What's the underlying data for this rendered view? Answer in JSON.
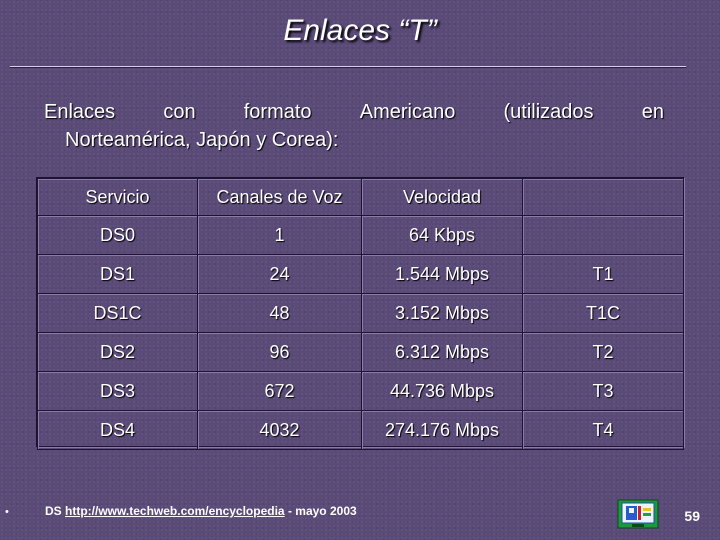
{
  "slide": {
    "title": "Enlaces “T”",
    "intro_line1_words": [
      "Enlaces",
      "con",
      "formato",
      "Americano",
      "(utilizados",
      "en"
    ],
    "intro_line2": "Norteamérica, Japón y Corea):"
  },
  "table": {
    "headers": [
      "Servicio",
      "Canales de Voz",
      "Velocidad",
      ""
    ],
    "rows": [
      [
        "DS0",
        "1",
        "64 Kbps",
        ""
      ],
      [
        "DS1",
        "24",
        "1.544 Mbps",
        "T1"
      ],
      [
        "DS1C",
        "48",
        "3.152 Mbps",
        "T1C"
      ],
      [
        "DS2",
        "96",
        "6.312 Mbps",
        "T2"
      ],
      [
        "DS3",
        "672",
        "44.736 Mbps",
        "T3"
      ],
      [
        "DS4",
        "4032",
        "274.176 Mbps",
        "T4"
      ]
    ]
  },
  "footer": {
    "bullet": "•",
    "source_prefix": "DS",
    "source_url": "http://www.techweb.com/encyclopedia",
    "source_suffix": "- mayo 2003",
    "page_number": "59",
    "logo_icon": "presentation-logo-icon"
  },
  "colors": {
    "background": "#5a4a78",
    "text": "#ffffff",
    "grid_dark": "#1c1430",
    "grid_light": "#8a7aa8"
  }
}
